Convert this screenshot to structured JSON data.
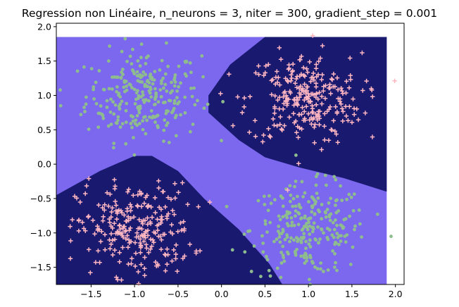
{
  "chart_data": {
    "type": "scatter",
    "title": "Regression non Linéaire, n_neurons = 3, niter = 300, gradient_step = 0.001",
    "xlabel": "",
    "ylabel": "",
    "xlim": [
      -1.9,
      2.1
    ],
    "ylim": [
      -1.75,
      2.05
    ],
    "x_ticks": [
      -1.5,
      -1.0,
      -0.5,
      0.0,
      0.5,
      1.0,
      1.5,
      2.0
    ],
    "x_tick_labels": [
      "−1.5",
      "−1.0",
      "−0.5",
      "0.0",
      "0.5",
      "1.0",
      "1.5",
      "2.0"
    ],
    "y_ticks": [
      -1.5,
      -1.0,
      -0.5,
      0.0,
      0.5,
      1.0,
      1.5,
      2.0
    ],
    "y_tick_labels": [
      "−1.5",
      "−1.0",
      "−0.5",
      "0.0",
      "0.5",
      "1.0",
      "1.5",
      "2.0"
    ],
    "grid": false,
    "legend": "none",
    "decision_region": {
      "extent_x": [
        -1.9,
        1.9
      ],
      "extent_y": [
        -1.75,
        1.85
      ],
      "background_class_color": "#7b68ee",
      "positive_class_color": "#191970",
      "regions": [
        {
          "class": "positive",
          "polygon": [
            [
              -0.15,
              1.0
            ],
            [
              0.1,
              1.45
            ],
            [
              0.5,
              1.85
            ],
            [
              1.9,
              1.85
            ],
            [
              1.9,
              -0.4
            ],
            [
              1.4,
              -0.2
            ],
            [
              0.9,
              -0.05
            ],
            [
              0.5,
              0.1
            ],
            [
              0.2,
              0.35
            ],
            [
              -0.15,
              0.75
            ]
          ]
        },
        {
          "class": "positive",
          "polygon": [
            [
              -1.9,
              -0.45
            ],
            [
              -1.4,
              -0.1
            ],
            [
              -1.0,
              0.12
            ],
            [
              -0.8,
              0.12
            ],
            [
              -0.5,
              -0.1
            ],
            [
              -0.2,
              -0.5
            ],
            [
              0.2,
              -0.95
            ],
            [
              0.55,
              -1.45
            ],
            [
              0.7,
              -1.75
            ],
            [
              -1.9,
              -1.75
            ]
          ]
        }
      ]
    },
    "series": [
      {
        "marker": "dot",
        "color": "#8fbc8f",
        "clusters": [
          {
            "center": [
              -0.9,
              1.0
            ],
            "spread": 0.33,
            "count": 260
          },
          {
            "center": [
              1.0,
              -0.95
            ],
            "spread": 0.33,
            "count": 260
          }
        ],
        "extra_points": [
          [
            1.95,
            -1.05
          ],
          [
            -1.85,
            0.85
          ]
        ]
      },
      {
        "marker": "plus",
        "color": "#ffb6c1",
        "clusters": [
          {
            "center": [
              0.95,
              0.95
            ],
            "spread": 0.33,
            "count": 260
          },
          {
            "center": [
              -1.0,
              -0.95
            ],
            "spread": 0.33,
            "count": 260
          }
        ],
        "extra_points": [
          [
            1.05,
            1.87
          ]
        ]
      }
    ]
  }
}
